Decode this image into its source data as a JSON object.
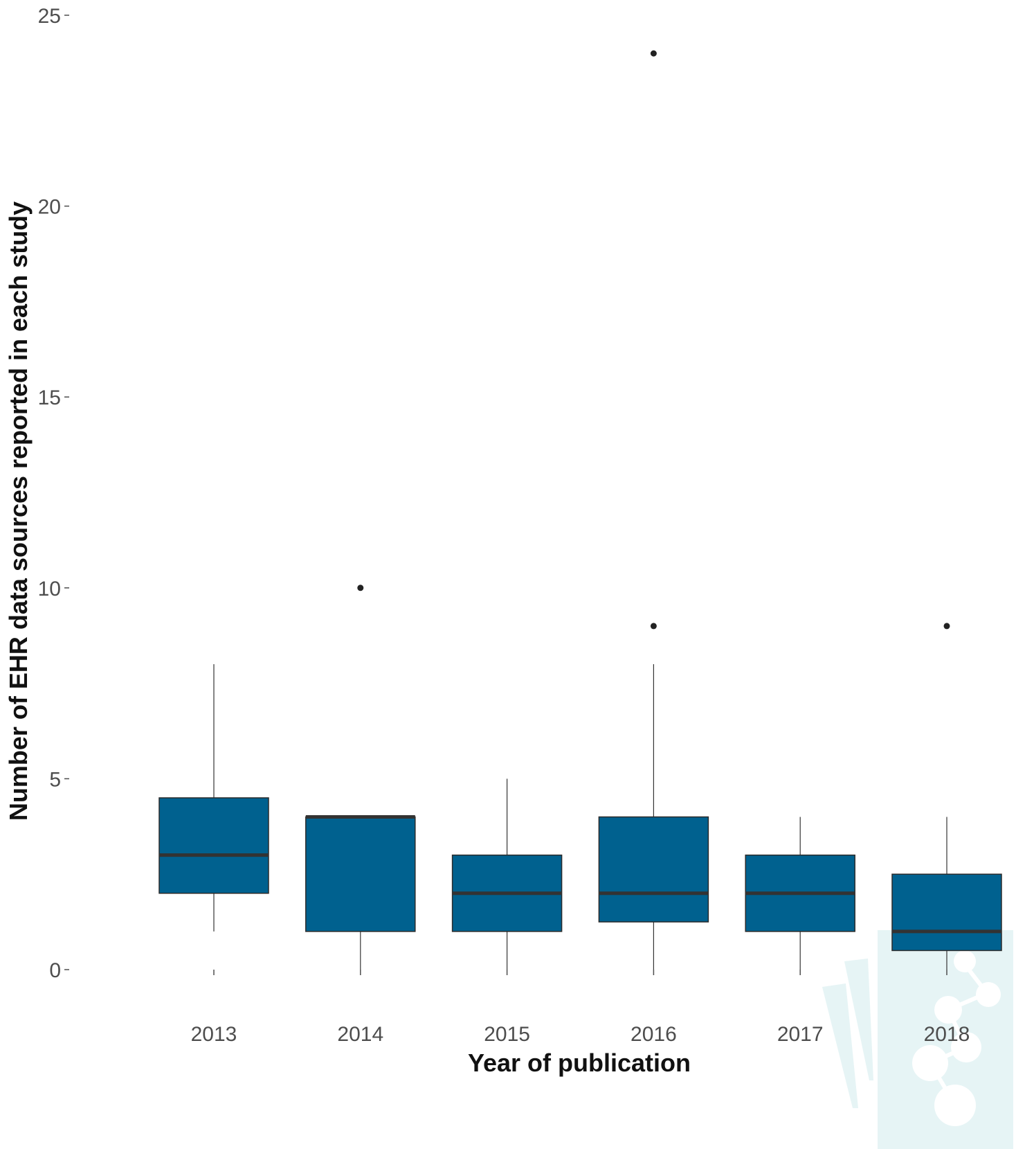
{
  "chart_data": {
    "type": "boxplot",
    "xlabel": "Year of publication",
    "ylabel": "Number of EHR data sources reported in each study",
    "categories": [
      "2013",
      "2014",
      "2015",
      "2016",
      "2017",
      "2018"
    ],
    "boxes": [
      {
        "category": "2013",
        "whisker_low": 1,
        "q1": 2,
        "median": 3,
        "q3": 4.5,
        "whisker_high": 8,
        "outliers": []
      },
      {
        "category": "2014",
        "whisker_low": 0,
        "q1": 1,
        "median": 4,
        "q3": 4,
        "whisker_high": 4,
        "outliers": [
          10
        ]
      },
      {
        "category": "2015",
        "whisker_low": 0,
        "q1": 1,
        "median": 2,
        "q3": 3,
        "whisker_high": 5,
        "outliers": []
      },
      {
        "category": "2016",
        "whisker_low": 0,
        "q1": 1.25,
        "median": 2,
        "q3": 4,
        "whisker_high": 8,
        "outliers": [
          9,
          24
        ]
      },
      {
        "category": "2017",
        "whisker_low": 0,
        "q1": 1,
        "median": 2,
        "q3": 3,
        "whisker_high": 4,
        "outliers": []
      },
      {
        "category": "2018",
        "whisker_low": 0,
        "q1": 0.5,
        "median": 1,
        "q3": 2.5,
        "whisker_high": 4,
        "outliers": [
          9
        ]
      }
    ],
    "yticks": [
      0,
      5,
      10,
      15,
      20,
      25
    ],
    "ytick_labels": [
      "0",
      "5",
      "10",
      "15",
      "20",
      "25"
    ],
    "ylim": [
      -0.35,
      25.5
    ],
    "grid": false,
    "legend": "none",
    "colors": {
      "box_fill": "#00618f",
      "box_stroke": "#2b2b2b",
      "median": "#333333",
      "whisker": "#333333",
      "outlier": "#222222",
      "tick": "#4d4d4d",
      "watermark": "#e6f4f5"
    }
  }
}
